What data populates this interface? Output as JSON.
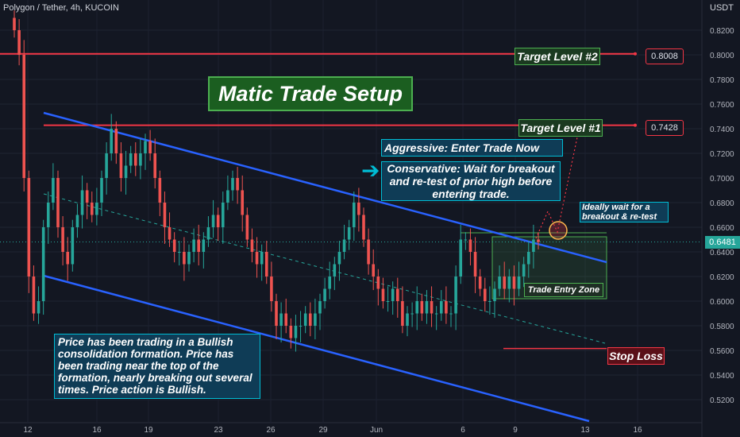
{
  "header": {
    "symbol": "Polygon / Tether, 4h, KUCOIN"
  },
  "currency_label": "USDT",
  "colors": {
    "background": "#131722",
    "bull": "#26a69a",
    "bear": "#ef5350",
    "channel": "#2962ff",
    "target_line": "#f23645",
    "green_box": "#4caf50",
    "teal_box": "#00bcd4",
    "stop_loss": "#f23645"
  },
  "chart_data": {
    "type": "candlestick",
    "timeframe": "4h",
    "exchange": "KUCOIN",
    "pair": "MATIC/USDT",
    "y_ticks": [
      "0.8200",
      "0.8000",
      "0.7800",
      "0.7600",
      "0.7400",
      "0.7200",
      "0.7000",
      "0.6800",
      "0.6600",
      "0.6400",
      "0.6200",
      "0.6000",
      "0.5800",
      "0.5600",
      "0.5400",
      "0.5200"
    ],
    "x_ticks": [
      "12",
      "16",
      "19",
      "23",
      "26",
      "29",
      "Jun",
      "6",
      "9",
      "13",
      "16"
    ],
    "ylim": [
      0.5,
      0.83
    ],
    "last_price": "0.6481",
    "target_levels": [
      {
        "label": "Target Level #2",
        "value": "0.8008"
      },
      {
        "label": "Target Level #1",
        "value": "0.7428"
      }
    ],
    "closes": [
      0.82,
      0.8,
      0.7,
      0.62,
      0.59,
      0.6,
      0.66,
      0.68,
      0.7,
      0.66,
      0.64,
      0.63,
      0.66,
      0.67,
      0.69,
      0.68,
      0.67,
      0.68,
      0.7,
      0.72,
      0.74,
      0.72,
      0.7,
      0.71,
      0.72,
      0.71,
      0.72,
      0.73,
      0.72,
      0.7,
      0.68,
      0.66,
      0.65,
      0.64,
      0.64,
      0.63,
      0.64,
      0.65,
      0.64,
      0.65,
      0.66,
      0.67,
      0.66,
      0.68,
      0.69,
      0.7,
      0.69,
      0.67,
      0.65,
      0.64,
      0.63,
      0.64,
      0.62,
      0.6,
      0.58,
      0.59,
      0.58,
      0.57,
      0.58,
      0.58,
      0.59,
      0.58,
      0.59,
      0.6,
      0.61,
      0.62,
      0.63,
      0.64,
      0.65,
      0.66,
      0.68,
      0.67,
      0.65,
      0.63,
      0.62,
      0.61,
      0.6,
      0.6,
      0.61,
      0.6,
      0.58,
      0.59,
      0.59,
      0.6,
      0.59,
      0.6,
      0.59,
      0.59,
      0.6,
      0.59,
      0.59,
      0.62,
      0.65,
      0.65,
      0.64,
      0.62,
      0.61,
      0.6,
      0.6,
      0.61,
      0.62,
      0.61,
      0.62,
      0.61,
      0.62,
      0.63,
      0.64,
      0.65,
      0.648
    ]
  },
  "annotations": {
    "title": "Matic Trade Setup",
    "aggressive": "Aggressive: Enter Trade Now",
    "conservative": "Conservative: Wait for breakout and re-test of prior high before entering trade.",
    "ideal": "Ideally wait for a breakout & re-test",
    "entry_zone": "Trade Entry Zone",
    "stop_loss": "Stop Loss",
    "consolidation": "Price has been trading in a Bullish consolidation formation. Price has been trading near the top of the formation, nearly breaking out several times. Price action is Bullish."
  }
}
